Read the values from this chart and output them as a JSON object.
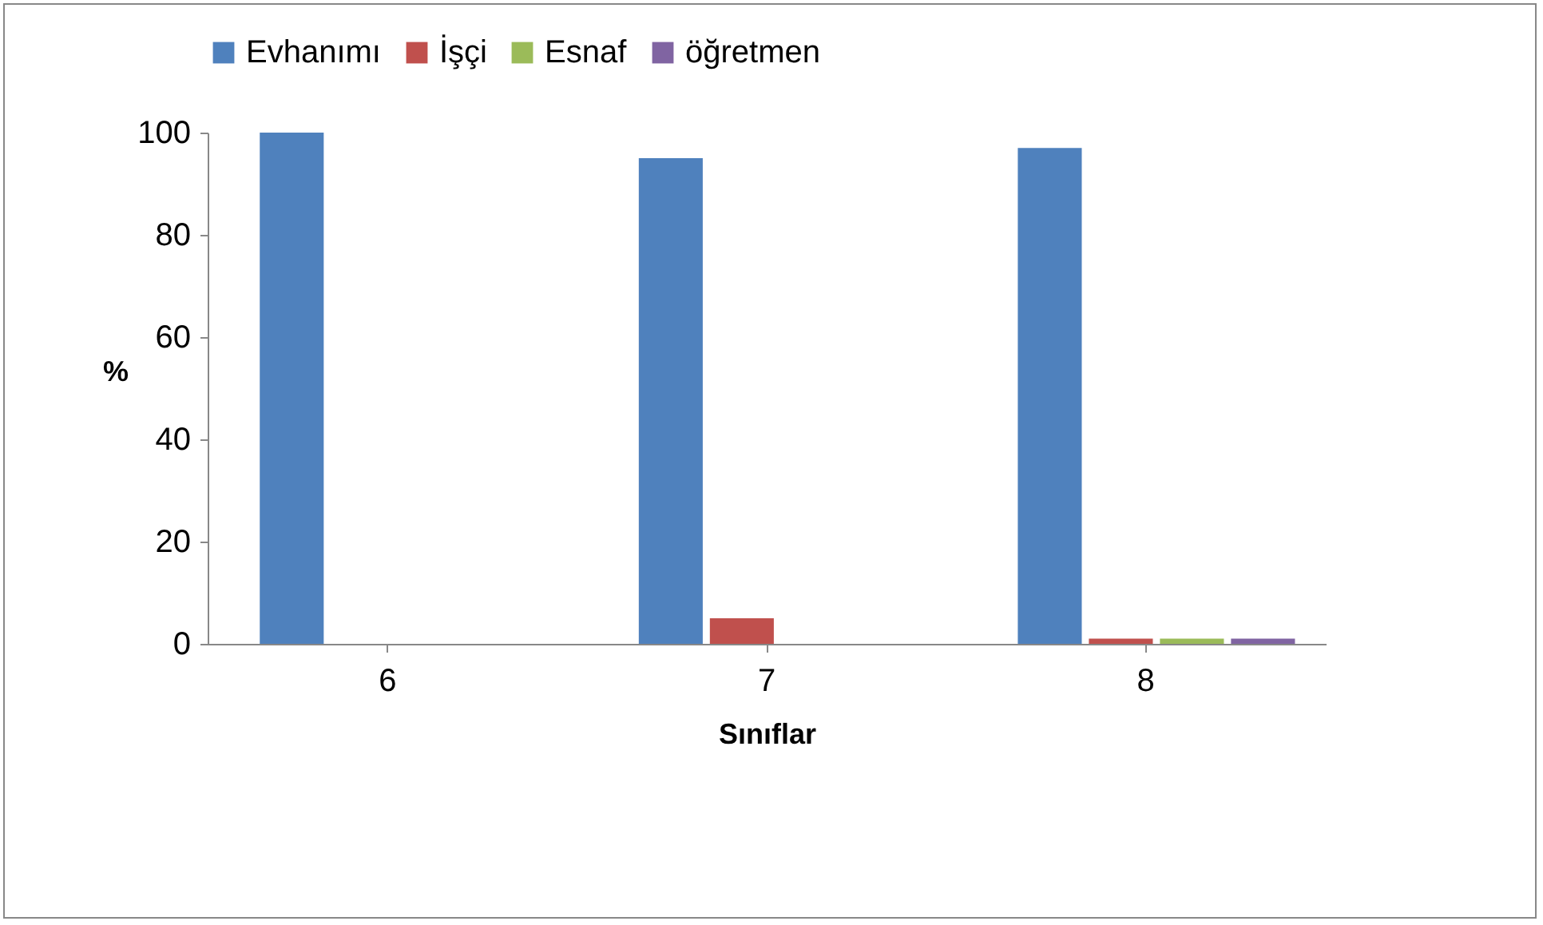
{
  "chart_data": {
    "type": "bar",
    "xlabel": "Sınıflar",
    "ylabel": "%",
    "categories": [
      "6",
      "7",
      "8"
    ],
    "series": [
      {
        "name": "Evhanımı",
        "color": "#4f81bd",
        "values": [
          100,
          95,
          97
        ]
      },
      {
        "name": "İşçi",
        "color": "#c0504d",
        "values": [
          0,
          5,
          1
        ]
      },
      {
        "name": "Esnaf",
        "color": "#9bbb59",
        "values": [
          0,
          0,
          1
        ]
      },
      {
        "name": "öğretmen",
        "color": "#8064a2",
        "values": [
          0,
          0,
          1
        ]
      }
    ],
    "ylim": [
      0,
      100
    ],
    "yticks": [
      0,
      20,
      40,
      60,
      80,
      100
    ],
    "grid": false,
    "legend": "top"
  }
}
